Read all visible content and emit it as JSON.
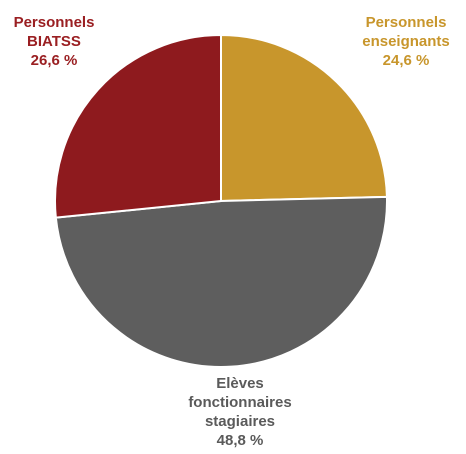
{
  "chart_data": {
    "type": "pie",
    "title": "",
    "slices": [
      {
        "label_lines": [
          "Personnels",
          "enseignants"
        ],
        "value": 24.6,
        "value_text": "24,6 %",
        "color": "#C8962C",
        "label_color": "#C8962C"
      },
      {
        "label_lines": [
          "Elèves",
          "fonctionnaires",
          "stagiaires"
        ],
        "value": 48.8,
        "value_text": "48,8 %",
        "color": "#5E5E5E",
        "label_color": "#5A5A5A"
      },
      {
        "label_lines": [
          "Personnels",
          "BIATSS"
        ],
        "value": 26.6,
        "value_text": "26,6 %",
        "color": "#8E1A1E",
        "label_color": "#9A1F22"
      }
    ]
  }
}
